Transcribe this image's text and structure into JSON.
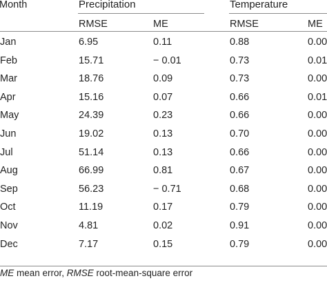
{
  "table": {
    "month_header": "Month",
    "groups": [
      {
        "label": "Precipitation",
        "subheaders": [
          "RMSE",
          "ME"
        ]
      },
      {
        "label": "Temperature",
        "subheaders": [
          "RMSE",
          "ME"
        ]
      }
    ],
    "rows": [
      {
        "month": "Jan",
        "p_rmse": "6.95",
        "p_me": "0.11",
        "t_rmse": "0.88",
        "t_me": "0.00"
      },
      {
        "month": "Feb",
        "p_rmse": "15.71",
        "p_me": "− 0.01",
        "t_rmse": "0.73",
        "t_me": "0.01"
      },
      {
        "month": "Mar",
        "p_rmse": "18.76",
        "p_me": "0.09",
        "t_rmse": "0.73",
        "t_me": "0.00"
      },
      {
        "month": "Apr",
        "p_rmse": "15.16",
        "p_me": "0.07",
        "t_rmse": "0.66",
        "t_me": "0.01"
      },
      {
        "month": "May",
        "p_rmse": "24.39",
        "p_me": "0.23",
        "t_rmse": "0.66",
        "t_me": "0.00"
      },
      {
        "month": "Jun",
        "p_rmse": "19.02",
        "p_me": "0.13",
        "t_rmse": "0.70",
        "t_me": "0.00"
      },
      {
        "month": "Jul",
        "p_rmse": "51.14",
        "p_me": "0.13",
        "t_rmse": "0.66",
        "t_me": "0.00"
      },
      {
        "month": "Aug",
        "p_rmse": "66.99",
        "p_me": "0.81",
        "t_rmse": "0.67",
        "t_me": "0.00"
      },
      {
        "month": "Sep",
        "p_rmse": "56.23",
        "p_me": "− 0.71",
        "t_rmse": "0.68",
        "t_me": "0.00"
      },
      {
        "month": "Oct",
        "p_rmse": "11.19",
        "p_me": "0.17",
        "t_rmse": "0.79",
        "t_me": "0.00"
      },
      {
        "month": "Nov",
        "p_rmse": "4.81",
        "p_me": "0.02",
        "t_rmse": "0.91",
        "t_me": "0.00"
      },
      {
        "month": "Dec",
        "p_rmse": "7.17",
        "p_me": "0.15",
        "t_rmse": "0.79",
        "t_me": "0.00"
      }
    ]
  },
  "footnote": {
    "me_abbr": "ME",
    "me_text": " mean error, ",
    "rmse_abbr": "RMSE",
    "rmse_text": " root-mean-square error"
  }
}
